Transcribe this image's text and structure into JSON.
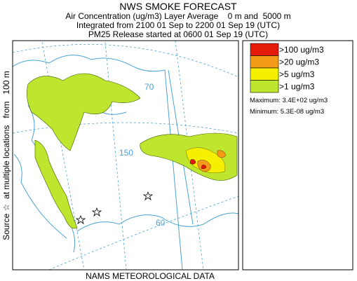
{
  "header": {
    "title": "NWS SMOKE FORECAST",
    "lines": [
      "Air Concentration (ug/m3) Layer Average    0 m and  5000 m",
      "Integrated from 2100 01 Sep to 2200 01 Sep 19 (UTC)",
      "PM25 Release started at 0600 01 Sep 19 (UTC)"
    ]
  },
  "side_label": "Source ☆  at multiple locations   from   100 m",
  "footer": "NAMS METEOROLOGICAL DATA",
  "map": {
    "labels": [
      "70",
      "150",
      "60"
    ]
  },
  "legend": {
    "items": [
      {
        "label": ">100 ug/m3",
        "color": "#e41a0a"
      },
      {
        "label": ">20 ug/m3",
        "color": "#f49b1a"
      },
      {
        "label": ">5 ug/m3",
        "color": "#f4f000"
      },
      {
        "label": ">1 ug/m3",
        "color": "#bfe62e"
      }
    ],
    "maximum": "Maximum: 3.4E+02 ug/m3",
    "minimum": "Minimum: 5.3E-08 ug/m3"
  }
}
